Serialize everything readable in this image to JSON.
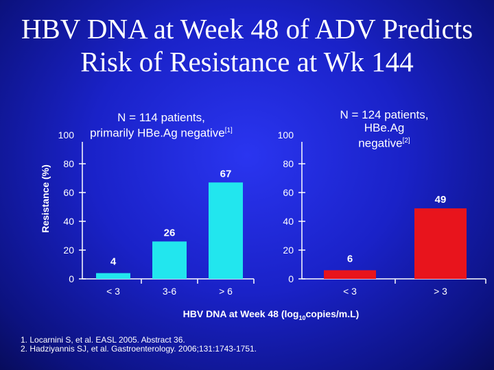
{
  "title": {
    "line1": "HBV DNA at Week 48 of ADV Predicts",
    "line2": "Risk of Resistance at Wk 144"
  },
  "y_axis_label": "Resistance (%)",
  "x_axis_title": {
    "main": "HBV DNA at Week 48 (log",
    "sub": "10",
    "tail": "copies/m.L)"
  },
  "references": [
    "1. Locarnini S, et al. EASL 2005. Abstract 36.",
    "2. Hadziyannis SJ, et al. Gastroenterology. 2006;131:1743-1751."
  ],
  "colors": {
    "cyan": "#22e6ee",
    "red": "#e8141c"
  },
  "chart_data": [
    {
      "type": "bar",
      "subtitle": {
        "text": "N = 114 patients,\nprimarily HBe.Ag negative",
        "ref": "[1]"
      },
      "categories": [
        "< 3",
        "3-6",
        "> 6"
      ],
      "values": [
        4,
        26,
        67
      ],
      "value_labels": [
        "4",
        "26",
        "67"
      ],
      "ylim": [
        0,
        100
      ],
      "yticks": [
        0,
        20,
        40,
        60,
        80,
        100
      ],
      "ylabel": "Resistance (%)",
      "color": "#22e6ee"
    },
    {
      "type": "bar",
      "subtitle": {
        "text": "N = 124 patients,\nHBe.Ag\nnegative",
        "ref": "[2]"
      },
      "categories": [
        "< 3",
        "> 3"
      ],
      "values": [
        6,
        49
      ],
      "value_labels": [
        "6",
        "49"
      ],
      "ylim": [
        0,
        100
      ],
      "yticks": [
        0,
        20,
        40,
        60,
        80,
        100
      ],
      "color": "#e8141c"
    }
  ]
}
